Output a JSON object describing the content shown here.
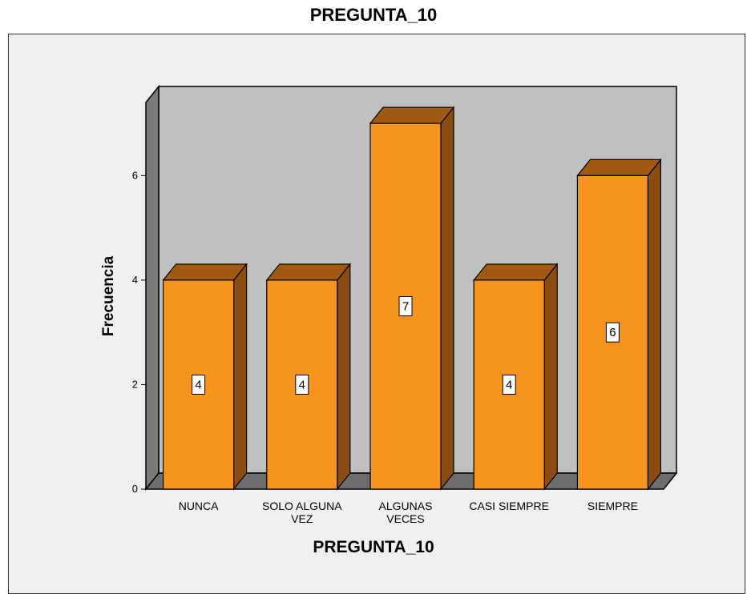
{
  "chart_data": {
    "type": "bar",
    "title": "PREGUNTA_10",
    "xlabel": "PREGUNTA_10",
    "ylabel": "Frecuencia",
    "categories": [
      "NUNCA",
      "SOLO ALGUNA VEZ",
      "ALGUNAS VECES",
      "CASI SIEMPRE",
      "SIEMPRE"
    ],
    "category_lines": [
      [
        "NUNCA"
      ],
      [
        "SOLO ALGUNA",
        "VEZ"
      ],
      [
        "ALGUNAS",
        "VECES"
      ],
      [
        "CASI SIEMPRE"
      ],
      [
        "SIEMPRE"
      ]
    ],
    "values": [
      4,
      4,
      7,
      4,
      6
    ],
    "yticks": [
      0,
      2,
      4,
      6
    ],
    "ylim": [
      0,
      7.4
    ],
    "grid": false,
    "bar_style": "3d",
    "colors": {
      "bar_front": "#f7941d",
      "bar_top": "#a15a12",
      "bar_side": "#8a4c10",
      "back_wall": "#c0c0c0",
      "side_wall": "#7a7a7a",
      "floor": "#6e6e6e",
      "panel": "#f0f0f0"
    }
  }
}
